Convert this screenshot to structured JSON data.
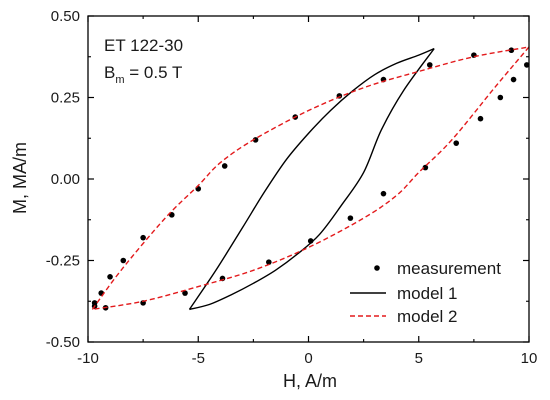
{
  "chart_data": {
    "type": "scatter",
    "xlabel": "H, A/m",
    "ylabel": "M, MA/m",
    "xlim": [
      -10,
      10
    ],
    "ylim": [
      -0.5,
      0.5
    ],
    "x_ticks": [
      -10,
      -5,
      0,
      5,
      10
    ],
    "y_ticks": [
      -0.5,
      -0.25,
      0.0,
      0.25,
      0.5
    ],
    "x_tick_labels": [
      "-10",
      "-5",
      "0",
      "5",
      "10"
    ],
    "y_tick_labels": [
      "-0.50",
      "-0.25",
      "0.00",
      "0.25",
      "0.50"
    ],
    "annotation": {
      "line1": "ET 122-30",
      "b": "B",
      "sub": "m",
      "rest": " = 0.5 T"
    },
    "legend": {
      "placement": "bottom-right",
      "entries": [
        {
          "label": "measurement",
          "style": "marker"
        },
        {
          "label": "model 1",
          "style": "solid"
        },
        {
          "label": "model 2",
          "style": "dashed"
        }
      ]
    },
    "series": [
      {
        "name": "measurement",
        "color": "#000000",
        "points": [
          [
            -9.7,
            -0.38
          ],
          [
            -9.4,
            -0.35
          ],
          [
            -9.0,
            -0.3
          ],
          [
            -8.4,
            -0.25
          ],
          [
            -7.5,
            -0.18
          ],
          [
            -6.2,
            -0.11
          ],
          [
            -5.0,
            -0.03
          ],
          [
            -3.8,
            0.04
          ],
          [
            -2.4,
            0.12
          ],
          [
            -0.6,
            0.19
          ],
          [
            1.4,
            0.255
          ],
          [
            3.4,
            0.305
          ],
          [
            5.5,
            0.35
          ],
          [
            7.5,
            0.38
          ],
          [
            9.2,
            0.395
          ],
          [
            9.9,
            0.35
          ],
          [
            9.3,
            0.305
          ],
          [
            8.7,
            0.25
          ],
          [
            7.8,
            0.185
          ],
          [
            6.7,
            0.11
          ],
          [
            5.3,
            0.035
          ],
          [
            3.4,
            -0.045
          ],
          [
            1.9,
            -0.12
          ],
          [
            0.1,
            -0.19
          ],
          [
            -1.8,
            -0.255
          ],
          [
            -3.9,
            -0.305
          ],
          [
            -5.6,
            -0.35
          ],
          [
            -7.5,
            -0.38
          ],
          [
            -9.2,
            -0.395
          ],
          [
            -9.7,
            -0.39
          ]
        ]
      },
      {
        "name": "model 1",
        "color": "#000000",
        "branches": [
          [
            [
              -5.4,
              -0.4
            ],
            [
              -4.2,
              -0.28
            ],
            [
              -3.0,
              -0.15
            ],
            [
              -2.0,
              -0.04
            ],
            [
              -1.0,
              0.06
            ],
            [
              0.0,
              0.14
            ],
            [
              1.0,
              0.21
            ],
            [
              2.0,
              0.27
            ],
            [
              3.0,
              0.32
            ],
            [
              4.0,
              0.355
            ],
            [
              5.0,
              0.38
            ],
            [
              5.7,
              0.4
            ]
          ],
          [
            [
              5.7,
              0.4
            ],
            [
              4.3,
              0.27
            ],
            [
              3.3,
              0.15
            ],
            [
              2.5,
              0.02
            ],
            [
              1.5,
              -0.08
            ],
            [
              0.5,
              -0.17
            ],
            [
              -0.5,
              -0.23
            ],
            [
              -1.5,
              -0.28
            ],
            [
              -2.5,
              -0.32
            ],
            [
              -3.5,
              -0.355
            ],
            [
              -4.5,
              -0.385
            ],
            [
              -5.4,
              -0.4
            ]
          ]
        ]
      },
      {
        "name": "model 2",
        "color": "#e31a1c",
        "branches": [
          [
            [
              -9.8,
              -0.4
            ],
            [
              -8.5,
              -0.28
            ],
            [
              -6.5,
              -0.12
            ],
            [
              -5.0,
              -0.02
            ],
            [
              -4.0,
              0.05
            ],
            [
              -2.5,
              0.12
            ],
            [
              0.0,
              0.21
            ],
            [
              2.5,
              0.28
            ],
            [
              5.0,
              0.33
            ],
            [
              7.5,
              0.375
            ],
            [
              10.0,
              0.405
            ]
          ],
          [
            [
              10.0,
              0.405
            ],
            [
              8.5,
              0.285
            ],
            [
              6.5,
              0.12
            ],
            [
              5.0,
              0.02
            ],
            [
              4.0,
              -0.05
            ],
            [
              2.5,
              -0.12
            ],
            [
              0.0,
              -0.21
            ],
            [
              -2.5,
              -0.28
            ],
            [
              -5.0,
              -0.33
            ],
            [
              -7.5,
              -0.375
            ],
            [
              -9.8,
              -0.4
            ]
          ]
        ]
      }
    ]
  }
}
